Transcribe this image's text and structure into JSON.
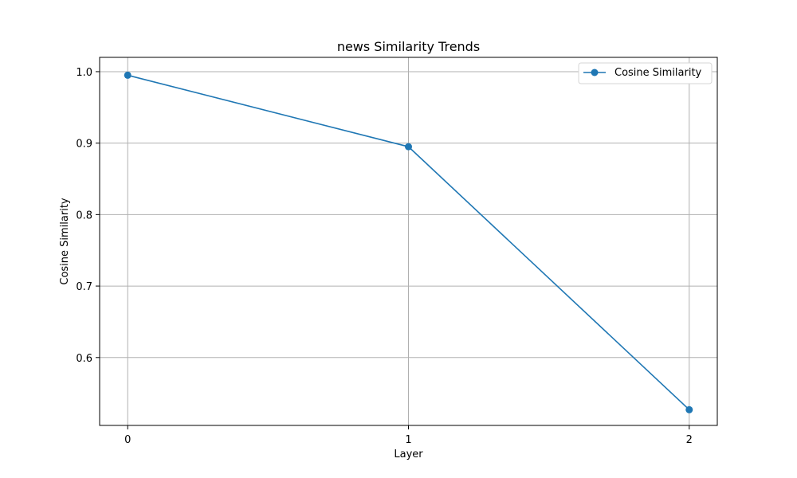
{
  "chart_data": {
    "type": "line",
    "title": "news Similarity Trends",
    "xlabel": "Layer",
    "ylabel": "Cosine Similarity",
    "x": [
      0,
      1,
      2
    ],
    "xticks": [
      "0",
      "1",
      "2"
    ],
    "yticks": [
      "0.6",
      "0.7",
      "0.8",
      "0.9",
      "1.0"
    ],
    "ylim": [
      0.505,
      1.02
    ],
    "xlim": [
      -0.1,
      2.1
    ],
    "grid": true,
    "legend_position": "top-right",
    "series": [
      {
        "name": "Cosine Similarity",
        "values": [
          0.995,
          0.895,
          0.527
        ],
        "color": "#1f77b4",
        "marker": "circle"
      }
    ]
  }
}
